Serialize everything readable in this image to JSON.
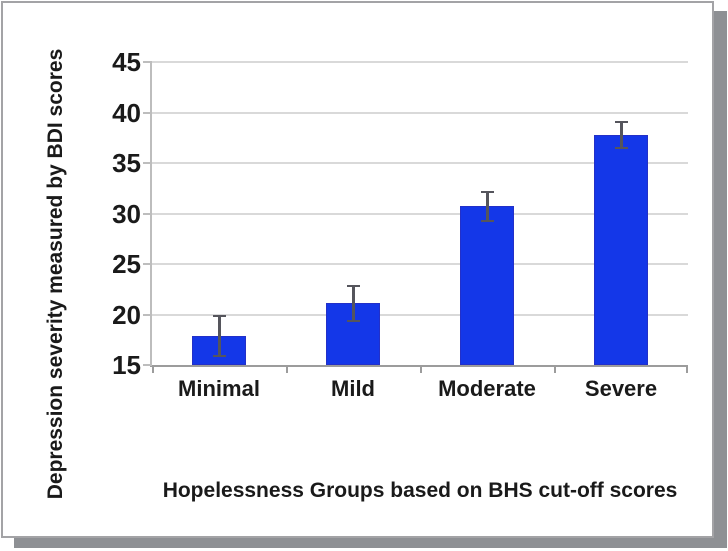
{
  "chart_data": {
    "type": "bar",
    "title": "",
    "xlabel": "Hopelessness Groups based on BHS cut-off scores",
    "ylabel": "Depression severity measured by BDI scores",
    "categories": [
      "Minimal",
      "Mild",
      "Moderate",
      "Severe"
    ],
    "values": [
      17.9,
      21.1,
      30.7,
      37.8
    ],
    "error_bars": [
      2.0,
      1.7,
      1.4,
      1.3
    ],
    "ylim": [
      15,
      45
    ],
    "yticks": [
      15,
      20,
      25,
      30,
      35,
      40,
      45
    ],
    "grid": true,
    "legend": false,
    "colors": {
      "bar_fill": "#1437e8",
      "bar_edge": "#2330c8",
      "error_bar": "#55555c",
      "gridline": "#d9d9d9",
      "y_axis_line": "#bdbdbd",
      "x_axis_line": "#9c9c9c",
      "text": "#1a1a1a",
      "frame_border": "#a3a3a6",
      "drop_shadow": "#8e9094",
      "background": "#ffffff"
    }
  }
}
